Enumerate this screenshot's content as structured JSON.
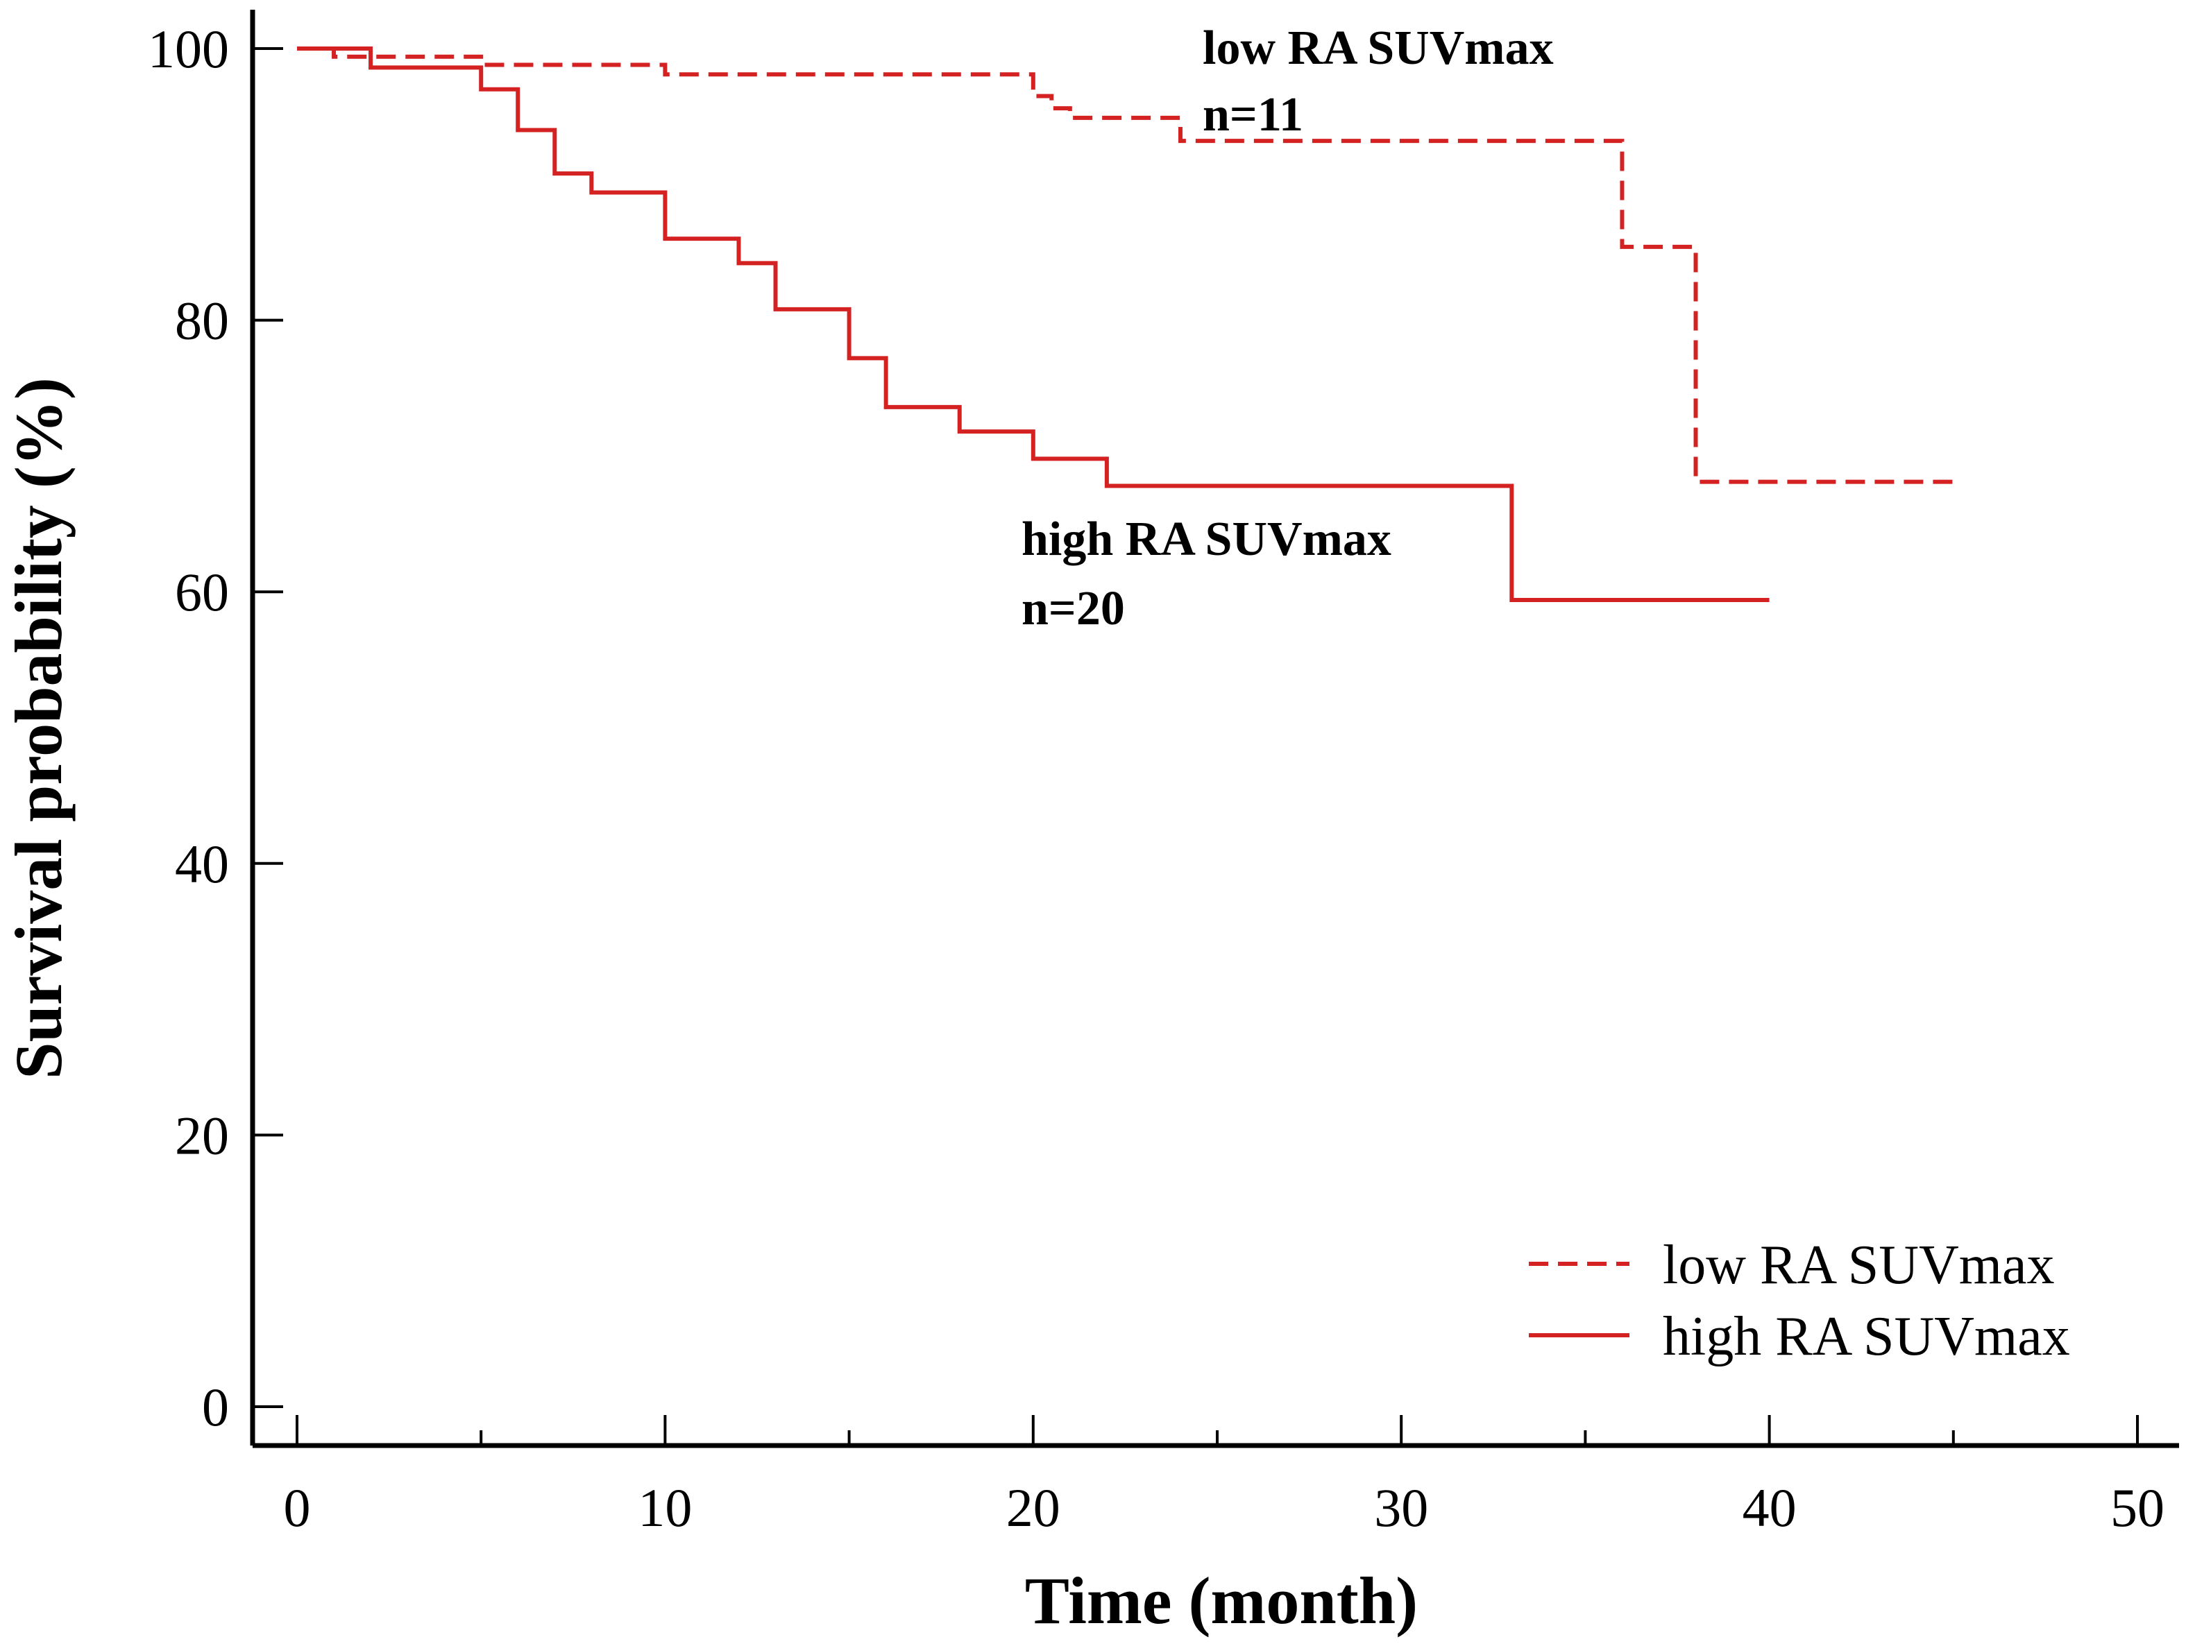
{
  "chart_data": {
    "type": "line",
    "title": "",
    "xlabel": "Time (month)",
    "ylabel": "Survival probability (%)",
    "xlim": [
      0,
      50
    ],
    "ylim": [
      0,
      100
    ],
    "xticks": [
      0,
      10,
      20,
      30,
      40,
      50
    ],
    "yticks": [
      0,
      20,
      40,
      60,
      80,
      100
    ],
    "grid": false,
    "legend_position": "bottom-right",
    "series": [
      {
        "name": "low RA SUVmax",
        "style": "dashed",
        "color": "#d42222",
        "step": true,
        "x": [
          0,
          1,
          5,
          10,
          20,
          20.5,
          21,
          22,
          24,
          36,
          38,
          45
        ],
        "y": [
          100,
          99.4,
          98.8,
          98.1,
          96.5,
          95.6,
          94.9,
          94.9,
          93.2,
          85.4,
          68.1,
          68.1
        ]
      },
      {
        "name": "high RA SUVmax",
        "style": "solid",
        "color": "#d42222",
        "step": true,
        "x": [
          0,
          2,
          5,
          6,
          7,
          8,
          10,
          12,
          13,
          15,
          16,
          18,
          19,
          20,
          22,
          33,
          40
        ],
        "y": [
          100,
          98.6,
          97.0,
          94.0,
          90.8,
          89.4,
          86.0,
          84.2,
          80.8,
          77.2,
          73.6,
          71.8,
          71.8,
          69.8,
          67.8,
          59.4,
          59.4
        ]
      }
    ],
    "annotations": [
      {
        "series": "low RA SUVmax",
        "label": "low RA SUVmax",
        "n": "n=11"
      },
      {
        "series": "high RA SUVmax",
        "label": "high RA SUVmax",
        "n": "n=20"
      }
    ]
  }
}
